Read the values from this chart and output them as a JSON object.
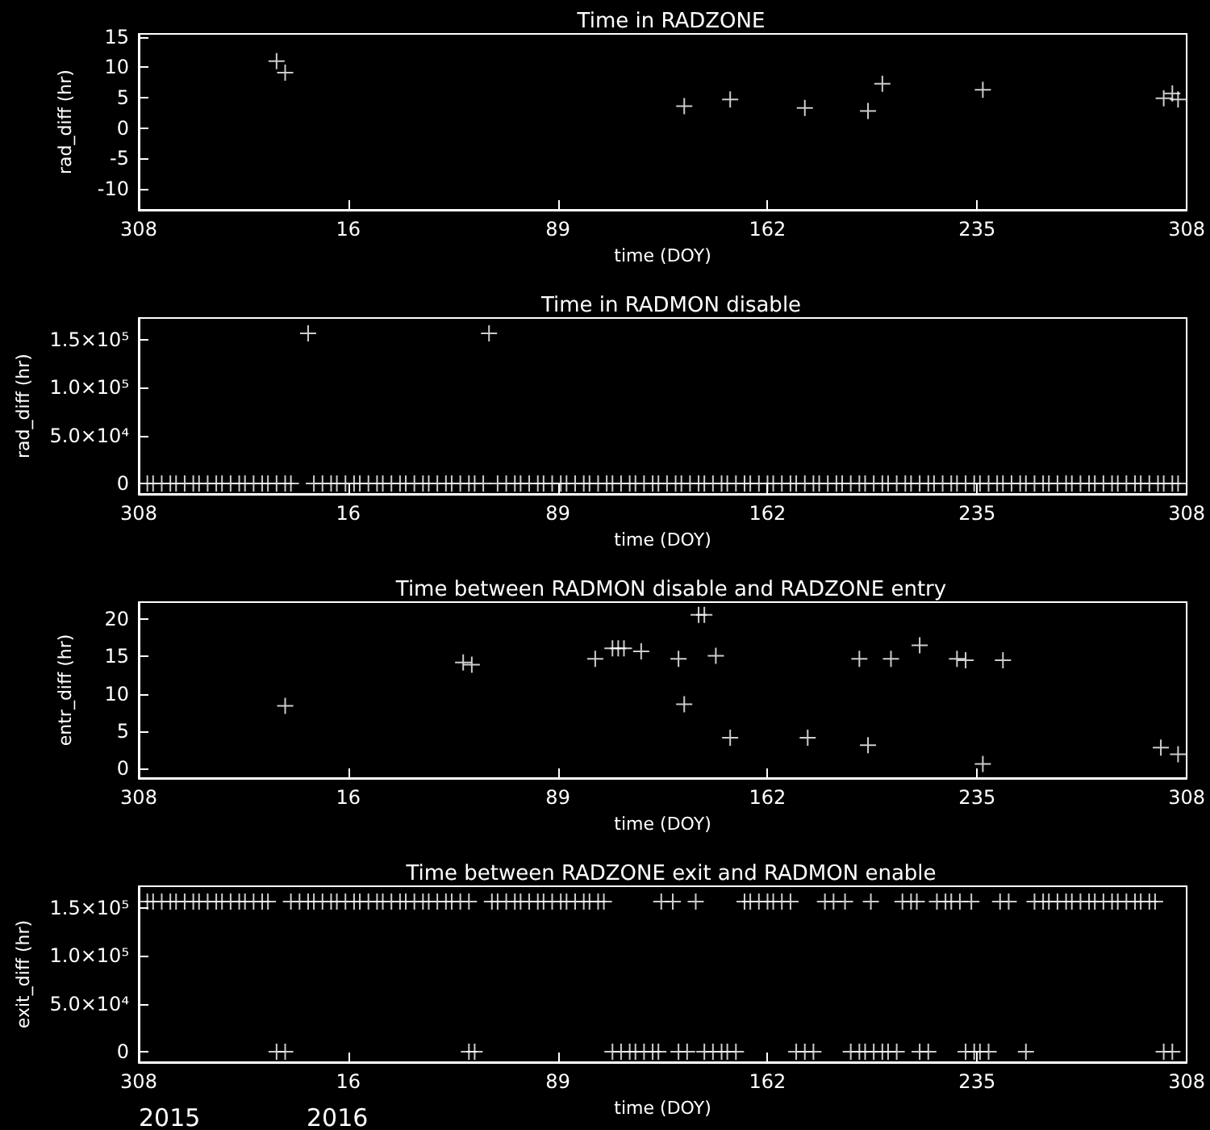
{
  "chart_data": [
    {
      "type": "scatter",
      "title": "Time in RADZONE",
      "xlabel": "time (DOY)",
      "ylabel": "rad_diff (hr)",
      "marker": "cross",
      "xlim": [
        "2015-11-04",
        "2016-11-03"
      ],
      "xticks": [
        {
          "value": "2015-11-04",
          "label": "308"
        },
        {
          "value": "2016-01-16",
          "label": "16"
        },
        {
          "value": "2016-03-29",
          "label": "89"
        },
        {
          "value": "2016-06-10",
          "label": "162"
        },
        {
          "value": "2016-08-22",
          "label": "235"
        },
        {
          "value": "2016-11-03",
          "label": "308"
        }
      ],
      "ylim": [
        -13.5,
        15.5
      ],
      "yticks": [
        -10,
        -5,
        0,
        5,
        10,
        15
      ],
      "series": [
        {
          "color": "#ffffff",
          "x": [
            "2015-12-22",
            "2015-12-25",
            "2016-05-12",
            "2016-05-28",
            "2016-06-23",
            "2016-07-15",
            "2016-07-20",
            "2016-08-24",
            "2016-10-26",
            "2016-10-29",
            "2016-10-31"
          ],
          "values": [
            11.0,
            9.1,
            3.6,
            4.7,
            3.3,
            2.8,
            7.3,
            6.3,
            4.9,
            5.7,
            4.7
          ]
        }
      ]
    },
    {
      "type": "scatter",
      "title": "Time in RADMON disable",
      "xlabel": "time (DOY)",
      "ylabel": "rad_diff (hr)",
      "marker": "cross",
      "xlim": [
        "2015-11-04",
        "2016-11-03"
      ],
      "xticks": [
        {
          "value": "2015-11-04",
          "label": "308"
        },
        {
          "value": "2016-01-16",
          "label": "16"
        },
        {
          "value": "2016-03-29",
          "label": "89"
        },
        {
          "value": "2016-06-10",
          "label": "162"
        },
        {
          "value": "2016-08-22",
          "label": "235"
        },
        {
          "value": "2016-11-03",
          "label": "308"
        }
      ],
      "ylim": [
        -11000,
        173000
      ],
      "yticks": [
        0,
        {
          "value": 50000,
          "label": "5.0×10⁴"
        },
        {
          "value": 100000,
          "label": "1.0×10⁵"
        },
        {
          "value": 150000,
          "label": "1.5×10⁵"
        }
      ],
      "series": [
        {
          "color": "#ffffff",
          "x": [
            "2016-01-02",
            "2016-03-05",
            "2015-11-07",
            "2015-11-09",
            "2015-11-12",
            "2015-11-15",
            "2015-11-17",
            "2015-11-20",
            "2015-11-23",
            "2015-11-25",
            "2015-11-28",
            "2015-12-01",
            "2015-12-03",
            "2015-12-06",
            "2015-12-09",
            "2015-12-11",
            "2015-12-14",
            "2015-12-17",
            "2015-12-19",
            "2015-12-22",
            "2015-12-25",
            "2015-12-27",
            "2016-01-04",
            "2016-01-07",
            "2016-01-10",
            "2016-01-12",
            "2016-01-15",
            "2016-01-18",
            "2016-01-20",
            "2016-01-23",
            "2016-01-26",
            "2016-01-28",
            "2016-01-31",
            "2016-02-03",
            "2016-02-05",
            "2016-02-08",
            "2016-02-11",
            "2016-02-13",
            "2016-02-16",
            "2016-02-19",
            "2016-02-21",
            "2016-02-24",
            "2016-02-27",
            "2016-02-29",
            "2016-03-03",
            "2016-03-08",
            "2016-03-11",
            "2016-03-14",
            "2016-03-16",
            "2016-03-19",
            "2016-03-22",
            "2016-03-24",
            "2016-03-27",
            "2016-03-30",
            "2016-04-01",
            "2016-04-04",
            "2016-04-07",
            "2016-04-09",
            "2016-04-12",
            "2016-04-15",
            "2016-04-17",
            "2016-04-20",
            "2016-04-23",
            "2016-04-25",
            "2016-04-28",
            "2016-05-01",
            "2016-05-03",
            "2016-05-06",
            "2016-05-09",
            "2016-05-11",
            "2016-05-14",
            "2016-05-17",
            "2016-05-19",
            "2016-05-22",
            "2016-05-25",
            "2016-05-27",
            "2016-05-30",
            "2016-06-02",
            "2016-06-04",
            "2016-06-07",
            "2016-06-10",
            "2016-06-12",
            "2016-06-15",
            "2016-06-18",
            "2016-06-20",
            "2016-06-23",
            "2016-06-26",
            "2016-06-28",
            "2016-07-01",
            "2016-07-04",
            "2016-07-06",
            "2016-07-09",
            "2016-07-12",
            "2016-07-14",
            "2016-07-17",
            "2016-07-20",
            "2016-07-22",
            "2016-07-25",
            "2016-07-28",
            "2016-07-30",
            "2016-08-02",
            "2016-08-05",
            "2016-08-07",
            "2016-08-10",
            "2016-08-13",
            "2016-08-15",
            "2016-08-18",
            "2016-08-21",
            "2016-08-23",
            "2016-08-26",
            "2016-08-29",
            "2016-08-31",
            "2016-09-03",
            "2016-09-06",
            "2016-09-08",
            "2016-09-11",
            "2016-09-14",
            "2016-09-16",
            "2016-09-19",
            "2016-09-22",
            "2016-09-24",
            "2016-09-27",
            "2016-09-30",
            "2016-10-02",
            "2016-10-05",
            "2016-10-08",
            "2016-10-10",
            "2016-10-13",
            "2016-10-16",
            "2016-10-18",
            "2016-10-21",
            "2016-10-24",
            "2016-10-26",
            "2016-10-29",
            "2016-10-31"
          ],
          "values": [
            157000,
            157000,
            0,
            0,
            0,
            0,
            0,
            0,
            0,
            0,
            0,
            0,
            0,
            0,
            0,
            0,
            0,
            0,
            0,
            0,
            0,
            0,
            0,
            0,
            0,
            0,
            0,
            0,
            0,
            0,
            0,
            0,
            0,
            0,
            0,
            0,
            0,
            0,
            0,
            0,
            0,
            0,
            0,
            0,
            0,
            0,
            0,
            0,
            0,
            0,
            0,
            0,
            0,
            0,
            0,
            0,
            0,
            0,
            0,
            0,
            0,
            0,
            0,
            0,
            0,
            0,
            0,
            0,
            0,
            0,
            0,
            0,
            0,
            0,
            0,
            0,
            0,
            0,
            0,
            0,
            0,
            0,
            0,
            0,
            0,
            0,
            0,
            0,
            0,
            0,
            0,
            0,
            0,
            0,
            0,
            0,
            0,
            0,
            0,
            0,
            0,
            0,
            0,
            0,
            0,
            0,
            0,
            0,
            0,
            0,
            0,
            0,
            0,
            0,
            0,
            0,
            0,
            0,
            0,
            0,
            0,
            0,
            0,
            0,
            0,
            0,
            0,
            0,
            0,
            0,
            0,
            0,
            0,
            0,
            0
          ]
        }
      ]
    },
    {
      "type": "scatter",
      "title": "Time between RADMON disable and RADZONE entry",
      "xlabel": "time (DOY)",
      "ylabel": "entr_diff (hr)",
      "marker": "cross",
      "xlim": [
        "2015-11-04",
        "2016-11-03"
      ],
      "xticks": [
        {
          "value": "2015-11-04",
          "label": "308"
        },
        {
          "value": "2016-01-16",
          "label": "16"
        },
        {
          "value": "2016-03-29",
          "label": "89"
        },
        {
          "value": "2016-06-10",
          "label": "162"
        },
        {
          "value": "2016-08-22",
          "label": "235"
        },
        {
          "value": "2016-11-03",
          "label": "308"
        }
      ],
      "ylim": [
        -1.3,
        22.3
      ],
      "yticks": [
        0,
        5,
        10,
        15,
        20
      ],
      "series": [
        {
          "color": "#ffffff",
          "x": [
            "2015-12-25",
            "2016-02-25",
            "2016-02-28",
            "2016-04-11",
            "2016-04-17",
            "2016-04-19",
            "2016-04-21",
            "2016-04-27",
            "2016-05-10",
            "2016-05-12",
            "2016-05-17",
            "2016-05-19",
            "2016-05-23",
            "2016-05-28",
            "2016-06-24",
            "2016-07-12",
            "2016-07-15",
            "2016-07-23",
            "2016-08-02",
            "2016-08-15",
            "2016-08-18",
            "2016-08-24",
            "2016-08-31",
            "2016-10-25",
            "2016-10-31"
          ],
          "values": [
            8.4,
            14.2,
            13.9,
            14.7,
            16.1,
            16.1,
            16.1,
            15.7,
            14.7,
            8.6,
            20.6,
            20.6,
            15.1,
            4.1,
            4.1,
            14.7,
            3.1,
            14.7,
            16.5,
            14.7,
            14.5,
            0.6,
            14.5,
            2.8,
            1.9
          ]
        }
      ]
    },
    {
      "type": "scatter",
      "title": "Time between RADZONE exit and RADMON enable",
      "xlabel": "time (DOY)",
      "ylabel": "exit_diff (hr)",
      "marker": "cross",
      "xlim": [
        "2015-11-04",
        "2016-11-03"
      ],
      "xticks": [
        {
          "value": "2015-11-04",
          "label": "308"
        },
        {
          "value": "2016-01-16",
          "label": "16"
        },
        {
          "value": "2016-03-29",
          "label": "89"
        },
        {
          "value": "2016-06-10",
          "label": "162"
        },
        {
          "value": "2016-08-22",
          "label": "235"
        },
        {
          "value": "2016-11-03",
          "label": "308"
        }
      ],
      "ylim": [
        -11000,
        173000
      ],
      "yticks": [
        0,
        {
          "value": 50000,
          "label": "5.0×10⁴"
        },
        {
          "value": 100000,
          "label": "1.0×10⁵"
        },
        {
          "value": 150000,
          "label": "1.5×10⁵"
        }
      ],
      "annotations": [
        "2015",
        "2016"
      ],
      "series": [
        {
          "color": "#ffffff",
          "x": [
            "2015-11-07",
            "2015-11-09",
            "2015-11-12",
            "2015-11-15",
            "2015-11-17",
            "2015-11-20",
            "2015-11-23",
            "2015-11-25",
            "2015-11-28",
            "2015-12-01",
            "2015-12-03",
            "2015-12-06",
            "2015-12-09",
            "2015-12-11",
            "2015-12-14",
            "2015-12-17",
            "2015-12-19",
            "2015-12-27",
            "2015-12-30",
            "2016-01-02",
            "2016-01-04",
            "2016-01-07",
            "2016-01-10",
            "2016-01-12",
            "2016-01-15",
            "2016-01-18",
            "2016-01-20",
            "2016-01-23",
            "2016-01-26",
            "2016-01-28",
            "2016-01-31",
            "2016-02-03",
            "2016-02-05",
            "2016-02-08",
            "2016-02-11",
            "2016-02-13",
            "2016-02-16",
            "2016-02-19",
            "2016-02-21",
            "2016-02-24",
            "2016-02-27",
            "2016-03-06",
            "2016-03-08",
            "2016-03-11",
            "2016-03-14",
            "2016-03-16",
            "2016-03-19",
            "2016-03-22",
            "2016-03-24",
            "2016-03-27",
            "2016-03-30",
            "2016-04-01",
            "2016-04-04",
            "2016-04-07",
            "2016-04-09",
            "2016-04-12",
            "2016-04-14",
            "2016-05-04",
            "2016-05-08",
            "2016-05-16",
            "2016-06-02",
            "2016-06-04",
            "2016-06-07",
            "2016-06-10",
            "2016-06-12",
            "2016-06-15",
            "2016-06-18",
            "2016-06-30",
            "2016-07-03",
            "2016-07-07",
            "2016-07-16",
            "2016-07-27",
            "2016-07-30",
            "2016-08-01",
            "2016-08-08",
            "2016-08-11",
            "2016-08-13",
            "2016-08-16",
            "2016-08-20",
            "2016-08-30",
            "2016-09-02",
            "2016-09-11",
            "2016-09-14",
            "2016-09-16",
            "2016-09-19",
            "2016-09-22",
            "2016-09-24",
            "2016-09-27",
            "2016-09-30",
            "2016-10-02",
            "2016-10-05",
            "2016-10-08",
            "2016-10-10",
            "2016-10-13",
            "2016-10-16",
            "2016-10-18",
            "2016-10-21",
            "2016-10-23"
          ],
          "values": [
            157000,
            157000,
            157000,
            157000,
            157000,
            157000,
            157000,
            157000,
            157000,
            157000,
            157000,
            157000,
            157000,
            157000,
            157000,
            157000,
            157000,
            157000,
            157000,
            157000,
            157000,
            157000,
            157000,
            157000,
            157000,
            157000,
            157000,
            157000,
            157000,
            157000,
            157000,
            157000,
            157000,
            157000,
            157000,
            157000,
            157000,
            157000,
            157000,
            157000,
            157000,
            157000,
            157000,
            157000,
            157000,
            157000,
            157000,
            157000,
            157000,
            157000,
            157000,
            157000,
            157000,
            157000,
            157000,
            157000,
            157000,
            157000,
            157000,
            157000,
            157000,
            157000,
            157000,
            157000,
            157000,
            157000,
            157000,
            157000,
            157000,
            157000,
            157000,
            157000,
            157000,
            157000,
            157000,
            157000,
            157000,
            157000,
            157000,
            157000,
            157000,
            157000,
            157000,
            157000,
            157000,
            157000,
            157000,
            157000,
            157000,
            157000,
            157000,
            157000,
            157000,
            157000,
            157000,
            157000,
            157000,
            157000
          ]
        },
        {
          "color": "#ffffff",
          "x": [
            "2015-12-22",
            "2015-12-25",
            "2016-02-27",
            "2016-02-29",
            "2016-04-17",
            "2016-04-20",
            "2016-04-23",
            "2016-04-25",
            "2016-04-28",
            "2016-05-01",
            "2016-05-03",
            "2016-05-10",
            "2016-05-13",
            "2016-05-19",
            "2016-05-22",
            "2016-05-25",
            "2016-05-27",
            "2016-05-30",
            "2016-06-20",
            "2016-06-23",
            "2016-06-26",
            "2016-07-09",
            "2016-07-12",
            "2016-07-14",
            "2016-07-17",
            "2016-07-20",
            "2016-07-22",
            "2016-07-25",
            "2016-08-02",
            "2016-08-05",
            "2016-08-18",
            "2016-08-21",
            "2016-08-23",
            "2016-08-26",
            "2016-09-08",
            "2016-10-26",
            "2016-10-29"
          ],
          "values": [
            0,
            0,
            0,
            0,
            0,
            0,
            0,
            0,
            0,
            0,
            0,
            0,
            0,
            0,
            0,
            0,
            0,
            0,
            0,
            0,
            0,
            0,
            0,
            0,
            0,
            0,
            0,
            0,
            0,
            0,
            0,
            0,
            0,
            0,
            0,
            0,
            0
          ]
        }
      ]
    }
  ]
}
